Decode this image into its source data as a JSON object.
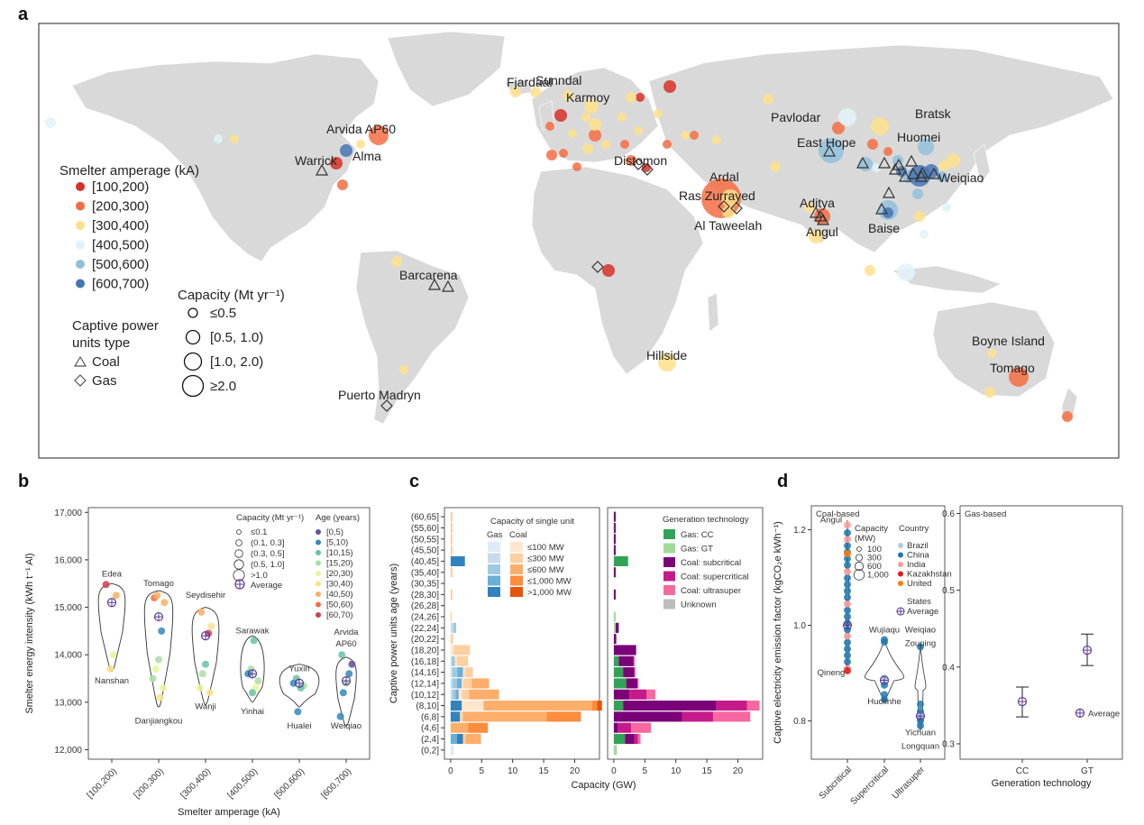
{
  "panel_letters": [
    "a",
    "b",
    "c",
    "d"
  ],
  "map": {
    "legend_amperage_title": "Smelter amperage (kA)",
    "amperage_bins": [
      {
        "label": "[100,200)",
        "color": "#d73027"
      },
      {
        "label": "[200,300)",
        "color": "#f46d43"
      },
      {
        "label": "[300,400)",
        "color": "#fee08b"
      },
      {
        "label": "[400,500)",
        "color": "#e0f3f8"
      },
      {
        "label": "[500,600)",
        "color": "#91bfdb"
      },
      {
        "label": "[600,700)",
        "color": "#4575b4"
      }
    ],
    "capacity_title": "Capacity (Mt yr⁻¹)",
    "capacity_bins": [
      "≤0.5",
      "[0.5, 1.0)",
      "[1.0, 2.0)",
      "≥2.0"
    ],
    "captive_title_1": "Captive power",
    "captive_title_2": "units type",
    "captive_types": [
      "Coal",
      "Gas"
    ],
    "cities": [
      "Fjardaál",
      "Sunndal",
      "Karmoy",
      "Arvida AP60",
      "Alma",
      "Warrick",
      "Pavlodar",
      "Bratsk",
      "East Hope",
      "Huomei",
      "Weiqiao",
      "Distomon",
      "Ardal",
      "Ras Zurrayed",
      "Al Taweelah",
      "Aditya",
      "Angul",
      "Baise",
      "Barcarena",
      "Hillside",
      "Boyne Island",
      "Tomago",
      "Puerto Madryn"
    ]
  },
  "chart_data": [
    {
      "panel": "b",
      "type": "violin",
      "xlabel": "Smelter amperage (kA)",
      "ylabel": "Smelter energy intensity (kWh t⁻¹ Al)",
      "categories": [
        "[100,200)",
        "[200,300)",
        "[300,400)",
        "[400,500)",
        "[500,600)",
        "[600,700)"
      ],
      "ylim": [
        11800,
        17100
      ],
      "yticks": [
        "12,000",
        "13,000",
        "14,000",
        "15,000",
        "16,000",
        "17,000"
      ],
      "averages": [
        15100,
        14800,
        14400,
        13600,
        13400,
        13450
      ],
      "annotations": [
        {
          "text": "Edea",
          "cat": 0,
          "y": 15650
        },
        {
          "text": "Nanshan",
          "cat": 0,
          "y": 13400
        },
        {
          "text": "Tomago",
          "cat": 1,
          "y": 15450
        },
        {
          "text": "Danjiangkou",
          "cat": 1,
          "y": 12550
        },
        {
          "text": "Seydisehir",
          "cat": 2,
          "y": 15200
        },
        {
          "text": "Wanji",
          "cat": 2,
          "y": 12850
        },
        {
          "text": "Sarawak",
          "cat": 3,
          "y": 14450
        },
        {
          "text": "Yinhai",
          "cat": 3,
          "y": 12750
        },
        {
          "text": "Yuxin",
          "cat": 4,
          "y": 13650
        },
        {
          "text": "Hualei",
          "cat": 4,
          "y": 12450
        },
        {
          "text": "Arvida",
          "cat": 5,
          "y": 14420
        },
        {
          "text": "AP60",
          "cat": 5,
          "y": 14170
        },
        {
          "text": "Weiqiao",
          "cat": 5,
          "y": 12450
        }
      ],
      "legend_capacity_title": "Capacity (Mt yr⁻¹)",
      "legend_capacity": [
        "≤0.1",
        "(0.1, 0.3]",
        "(0.3, 0.5]",
        "(0.5, 1.0]",
        ">1.0"
      ],
      "legend_age_title": "Age (years)",
      "legend_age": [
        {
          "label": "[0,5)",
          "color": "#5e4fa2"
        },
        {
          "label": "[5,10)",
          "color": "#3288bd"
        },
        {
          "label": "[10,15)",
          "color": "#66c2a5"
        },
        {
          "label": "[15,20)",
          "color": "#abdda4"
        },
        {
          "label": "[20,30)",
          "color": "#e6f598"
        },
        {
          "label": "[30,40)",
          "color": "#fee08b"
        },
        {
          "label": "[40,50)",
          "color": "#fdae61"
        },
        {
          "label": "[50,60)",
          "color": "#f46d43"
        },
        {
          "label": "[60,70)",
          "color": "#d53e4f"
        }
      ],
      "average_label": "Average"
    },
    {
      "panel": "c",
      "type": "stacked-horizontal-bar",
      "ylabel": "Captive power units age (years)",
      "xlabel": "Capacity (GW)",
      "categories": [
        "(0,2]",
        "(2,4]",
        "(4,6]",
        "(6,8]",
        "(8,10]",
        "(10,12]",
        "(12,14]",
        "(14,16]",
        "(16,18]",
        "(18,20]",
        "(20,22]",
        "(22,24]",
        "(24,26]",
        "(26,28]",
        "(28,30]",
        "(30,35]",
        "(35,40]",
        "(40,45]",
        "(45,50]",
        "(50,55]",
        "(55,60]",
        "(60,65]"
      ],
      "xlim": [
        -1,
        24
      ],
      "xticks": [
        0,
        5,
        10,
        15,
        20
      ],
      "left_legend_title": "Capacity of single unit",
      "left_legend_col1": "Gas",
      "left_legend_col2": "Coal",
      "left_series": [
        {
          "name": "Gas ≤100 MW",
          "color": "#deebf7",
          "values": [
            0.5,
            0,
            0,
            0,
            0,
            0,
            0,
            0,
            0,
            0,
            0,
            0,
            0,
            0,
            0,
            0,
            0,
            0,
            0,
            0,
            0,
            0
          ]
        },
        {
          "name": "Gas ≤300 MW",
          "color": "#c6dbef",
          "values": [
            0,
            0,
            0,
            0,
            0,
            0.3,
            0.3,
            0.3,
            0.2,
            0,
            0,
            0.4,
            0,
            0,
            0,
            0,
            0,
            0,
            0,
            0,
            0,
            0
          ]
        },
        {
          "name": "Gas ≤600 MW",
          "color": "#9ecae1",
          "values": [
            0,
            0,
            0,
            0,
            0,
            0.5,
            0.7,
            0.8,
            0.5,
            0,
            0,
            0.5,
            0,
            0,
            0,
            0,
            0,
            0,
            0,
            0,
            0,
            0
          ]
        },
        {
          "name": "Gas ≤1,000 MW",
          "color": "#6baed6",
          "values": [
            0,
            1.0,
            0,
            0,
            0,
            0.5,
            0.8,
            0.9,
            0,
            0,
            0,
            0,
            0,
            0,
            0,
            0,
            0,
            0,
            0,
            0,
            0,
            0
          ]
        },
        {
          "name": "Gas >1,000 MW",
          "color": "#3182bd",
          "values": [
            0,
            1.0,
            0,
            1.5,
            1.8,
            0,
            0,
            0,
            0,
            0,
            0,
            0,
            0,
            0,
            0,
            0,
            0,
            2.3,
            0,
            0,
            0,
            0
          ]
        },
        {
          "name": "Coal ≤100 MW",
          "color": "#fee6ce",
          "values": [
            0,
            0,
            0,
            0,
            3.5,
            0.5,
            0.2,
            0.3,
            0.3,
            0.5,
            0,
            0,
            0,
            0,
            0,
            0,
            0,
            0,
            0,
            0,
            0,
            0
          ]
        },
        {
          "name": "Coal ≤300 MW",
          "color": "#fdd0a2",
          "values": [
            0,
            0.4,
            0,
            0.5,
            0,
            1.2,
            1.4,
            1.3,
            1.8,
            2.6,
            0.4,
            0,
            0.2,
            0,
            0.3,
            0,
            0.3,
            0,
            0.3,
            0.3,
            0.3,
            0.3
          ]
        },
        {
          "name": "Coal ≤600 MW",
          "color": "#fdae6b",
          "values": [
            0,
            2.5,
            2.8,
            13.5,
            17.5,
            4.8,
            2.8,
            0,
            0,
            0,
            0,
            0,
            0,
            0,
            0,
            0,
            0,
            0,
            0,
            0,
            0,
            0
          ]
        },
        {
          "name": "Coal ≤1,000 MW",
          "color": "#fd8d3c",
          "values": [
            0,
            0,
            3.2,
            5.5,
            0.8,
            0,
            0,
            0,
            0,
            0,
            0,
            0,
            0,
            0,
            0,
            0,
            0,
            0,
            0,
            0,
            0,
            0
          ]
        },
        {
          "name": "Coal >1,000 MW",
          "color": "#e6550d",
          "values": [
            0,
            0,
            0,
            0,
            0.8,
            0,
            0,
            0,
            0,
            0,
            0,
            0,
            0,
            0,
            0,
            0,
            0,
            0,
            0,
            0,
            0,
            0
          ]
        }
      ],
      "left_legend_rows": [
        "≤100 MW",
        "≤300 MW",
        "≤600 MW",
        "≤1,000 MW",
        ">1,000 MW"
      ],
      "right_legend_title": "Generation technology",
      "right_series": [
        {
          "name": "Gas: CC",
          "color": "#31a354",
          "values": [
            0,
            1.8,
            0,
            0,
            1.5,
            0,
            2.0,
            1.5,
            0.8,
            0,
            0,
            0,
            0,
            0,
            0,
            0,
            0,
            2.3,
            0,
            0,
            0,
            0
          ]
        },
        {
          "name": "Gas: GT",
          "color": "#a1d99b",
          "values": [
            0.5,
            0,
            0,
            0,
            0,
            0,
            0,
            0,
            0,
            0,
            0,
            0.3,
            0.3,
            0,
            0,
            0,
            0,
            0,
            0,
            0,
            0,
            0
          ]
        },
        {
          "name": "Coal: subcritical",
          "color": "#7a0177",
          "values": [
            0,
            1.5,
            0.6,
            11.0,
            15.0,
            2.5,
            1.8,
            1.8,
            2.4,
            3.6,
            0.4,
            0.5,
            0,
            0,
            0.3,
            0,
            0.3,
            0,
            0.3,
            0.3,
            0.3,
            0.3
          ]
        },
        {
          "name": "Coal: supercritical",
          "color": "#c51b8a",
          "values": [
            0,
            0.6,
            2.2,
            5.0,
            5.0,
            2.8,
            0,
            0,
            0,
            0,
            0,
            0,
            0,
            0,
            0,
            0,
            0,
            0,
            0,
            0,
            0,
            0
          ]
        },
        {
          "name": "Coal: ultrasuper",
          "color": "#f768a1",
          "values": [
            0,
            0.4,
            3.2,
            6.0,
            2.0,
            1.4,
            0.2,
            0.2,
            0.2,
            0,
            0,
            0,
            0,
            0,
            0,
            0,
            0,
            0,
            0,
            0,
            0,
            0
          ]
        },
        {
          "name": "Unknown",
          "color": "#bdbdbd",
          "values": [
            0,
            0,
            0,
            0,
            0,
            0,
            0,
            0,
            0,
            0,
            0,
            0,
            0,
            0,
            0,
            0,
            0,
            0,
            0,
            0,
            0,
            0
          ]
        }
      ]
    },
    {
      "panel": "d",
      "type": "scatter-violin",
      "ylabel": "Captive electricity emission factor (kgCO₂e kWh⁻¹)",
      "left_title": "Coal-based",
      "left_categories": [
        "Subcritical",
        "Supercritical",
        "Ultrasuper"
      ],
      "left_ylim": [
        0.72,
        1.25
      ],
      "left_yticks": [
        0.8,
        1.0,
        1.2
      ],
      "left_averages": [
        1.0,
        0.885,
        0.81
      ],
      "left_annotations": [
        {
          "text": "Angul",
          "cat": 0,
          "y": 1.215,
          "color": "#f4a6b8"
        },
        {
          "text": "Qineng",
          "cat": 0,
          "y": 0.895,
          "color": "#2166ac"
        },
        {
          "text": "Wujiaqu",
          "cat": 1,
          "y": 0.985,
          "color": "#2166ac"
        },
        {
          "text": "Huolinhe",
          "cat": 1,
          "y": 0.835,
          "color": "#2166ac"
        },
        {
          "text": "Weiqiao",
          "cat": 2,
          "y": 0.985,
          "color": "#2166ac"
        },
        {
          "text": "Zouping",
          "cat": 2,
          "y": 0.957,
          "color": "#2166ac"
        },
        {
          "text": "Yichuan",
          "cat": 2,
          "y": 0.77,
          "color": "#2166ac"
        },
        {
          "text": "Longquan",
          "cat": 2,
          "y": 0.742,
          "color": "#2166ac"
        }
      ],
      "legend_capacity_title": "Capacity",
      "legend_capacity_unit": "(MW)",
      "legend_capacity": [
        "100",
        "300",
        "600",
        "1,000"
      ],
      "legend_country_title": "Country",
      "legend_country": [
        {
          "label": "Brazil",
          "color": "#a6cee3"
        },
        {
          "label": "China",
          "color": "#1f78b4"
        },
        {
          "label": "India",
          "color": "#fb9a99"
        },
        {
          "label": "Kazakhstan",
          "color": "#e31a1c"
        },
        {
          "label": "United",
          "color": "#ff7f00"
        }
      ],
      "legend_country_extra": "States",
      "average_label": "Average",
      "right_title": "Gas-based",
      "right_categories": [
        "CC",
        "GT"
      ],
      "right_xlabel": "Generation technology",
      "right_ylim": [
        0.28,
        0.61
      ],
      "right_yticks": [
        0.3,
        0.4,
        0.5,
        0.6
      ],
      "right_averages": [
        0.355,
        0.422
      ],
      "right_errors": [
        [
          0.335,
          0.374
        ],
        [
          0.402,
          0.443
        ]
      ]
    }
  ]
}
